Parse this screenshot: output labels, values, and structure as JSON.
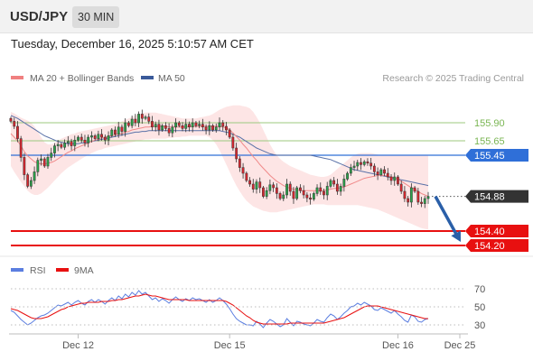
{
  "header": {
    "symbol": "USD/JPY",
    "timeframe": "30 MIN",
    "datetime": "Tuesday, December 16, 2025 5:10:57 AM CET"
  },
  "chart_data": [
    {
      "type": "candlestick",
      "legend": [
        {
          "label": "MA 20 + Bollinger Bands",
          "color": "#f08080"
        },
        {
          "label": "MA 50",
          "color": "#3a5a9a"
        }
      ],
      "credit": "Research © 2025 Trading Central",
      "x_ticks": [
        {
          "label": "Dec 12",
          "index": 20
        },
        {
          "label": "Dec 15",
          "index": 65
        },
        {
          "label": "Dec 16",
          "index": 115
        },
        {
          "label": "Dec 25",
          "index": 132
        }
      ],
      "ylim": [
        154.1,
        156.35
      ],
      "levels": [
        {
          "label": "155.90",
          "value": 155.9,
          "kind": "resistance",
          "color": "#9cc97e"
        },
        {
          "label": "155.65",
          "value": 155.65,
          "kind": "resistance",
          "color": "#9cc97e"
        },
        {
          "label": "155.45",
          "value": 155.45,
          "kind": "pivot",
          "color": "#2f6fd8"
        },
        {
          "label": "154.88",
          "value": 154.88,
          "kind": "last",
          "color": "#333333"
        },
        {
          "label": "154.40",
          "value": 154.4,
          "kind": "target",
          "color": "#e81010"
        },
        {
          "label": "154.20",
          "value": 154.2,
          "kind": "target",
          "color": "#e81010"
        }
      ],
      "projection": {
        "from": 154.88,
        "to": 154.25,
        "color": "#2a5fa8"
      },
      "close": [
        155.92,
        155.85,
        155.68,
        155.42,
        155.18,
        155.02,
        155.1,
        155.22,
        155.38,
        155.4,
        155.3,
        155.42,
        155.48,
        155.58,
        155.6,
        155.56,
        155.62,
        155.64,
        155.58,
        155.66,
        155.7,
        155.66,
        155.62,
        155.7,
        155.72,
        155.68,
        155.74,
        155.7,
        155.66,
        155.72,
        155.8,
        155.74,
        155.84,
        155.78,
        155.9,
        155.86,
        155.95,
        155.9,
        156.02,
        155.96,
        155.98,
        155.92,
        155.84,
        155.88,
        155.8,
        155.86,
        155.82,
        155.76,
        155.84,
        155.9,
        155.86,
        155.82,
        155.88,
        155.84,
        155.9,
        155.86,
        155.88,
        155.84,
        155.8,
        155.86,
        155.8,
        155.84,
        155.9,
        155.85,
        155.8,
        155.7,
        155.55,
        155.4,
        155.28,
        155.2,
        155.1,
        155.05,
        154.98,
        155.08,
        155.0,
        154.88,
        154.96,
        155.04,
        155.0,
        154.92,
        154.85,
        154.9,
        155.05,
        154.95,
        154.85,
        155.0,
        154.96,
        154.9,
        154.86,
        154.84,
        154.92,
        155.0,
        154.95,
        154.9,
        155.02,
        155.1,
        155.05,
        154.95,
        155.02,
        155.12,
        155.2,
        155.28,
        155.3,
        155.35,
        155.32,
        155.36,
        155.34,
        155.3,
        155.22,
        155.18,
        155.25,
        155.2,
        155.15,
        155.1,
        155.15,
        155.05,
        154.95,
        154.85,
        154.8,
        155.0,
        154.95,
        154.8,
        154.78,
        154.85,
        154.88
      ],
      "ma20": [
        155.75,
        155.7,
        155.65,
        155.58,
        155.5,
        155.44,
        155.4,
        155.36,
        155.34,
        155.33,
        155.33,
        155.34,
        155.35,
        155.37,
        155.4,
        155.43,
        155.46,
        155.49,
        155.51,
        155.54,
        155.56,
        155.58,
        155.6,
        155.62,
        155.64,
        155.66,
        155.67,
        155.69,
        155.7,
        155.71,
        155.72,
        155.73,
        155.74,
        155.75,
        155.77,
        155.78,
        155.8,
        155.81,
        155.82,
        155.83,
        155.84,
        155.84,
        155.85,
        155.85,
        155.85,
        155.85,
        155.85,
        155.84,
        155.84,
        155.84,
        155.84,
        155.84,
        155.84,
        155.85,
        155.85,
        155.85,
        155.85,
        155.85,
        155.85,
        155.85,
        155.85,
        155.85,
        155.85,
        155.84,
        155.83,
        155.8,
        155.76,
        155.71,
        155.66,
        155.6,
        155.55,
        155.49,
        155.43,
        155.38,
        155.32,
        155.27,
        155.22,
        155.17,
        155.13,
        155.09,
        155.06,
        155.03,
        155.01,
        154.99,
        154.98,
        154.97,
        154.96,
        154.96,
        154.96,
        154.96,
        154.96,
        154.96,
        154.96,
        154.96,
        154.97,
        154.98,
        154.99,
        154.99,
        155.0,
        155.01,
        155.03,
        155.05,
        155.07,
        155.09,
        155.11,
        155.13,
        155.14,
        155.15,
        155.16,
        155.17,
        155.17,
        155.17,
        155.16,
        155.15,
        155.14,
        155.12,
        155.09,
        155.06,
        155.03,
        155.0,
        154.98,
        154.95,
        154.92,
        154.9,
        154.88
      ],
      "bb_upper": [
        156.05,
        156.03,
        156.0,
        155.97,
        155.95,
        155.93,
        155.9,
        155.85,
        155.78,
        155.7,
        155.63,
        155.6,
        155.6,
        155.62,
        155.65,
        155.68,
        155.7,
        155.72,
        155.74,
        155.75,
        155.77,
        155.78,
        155.79,
        155.8,
        155.81,
        155.82,
        155.83,
        155.84,
        155.85,
        155.86,
        155.87,
        155.88,
        155.9,
        155.92,
        155.94,
        155.96,
        155.98,
        156.0,
        156.02,
        156.03,
        156.04,
        156.04,
        156.04,
        156.04,
        156.03,
        156.02,
        156.01,
        156.0,
        155.99,
        155.98,
        155.97,
        155.96,
        155.96,
        155.96,
        155.96,
        155.96,
        155.97,
        155.98,
        155.99,
        156.0,
        156.02,
        156.05,
        156.08,
        156.1,
        156.12,
        156.13,
        156.14,
        156.14,
        156.14,
        156.13,
        156.12,
        156.1,
        156.05,
        155.98,
        155.9,
        155.8,
        155.7,
        155.6,
        155.52,
        155.45,
        155.4,
        155.36,
        155.33,
        155.3,
        155.28,
        155.26,
        155.24,
        155.22,
        155.2,
        155.18,
        155.17,
        155.16,
        155.15,
        155.15,
        155.16,
        155.18,
        155.22,
        155.26,
        155.3,
        155.34,
        155.38,
        155.42,
        155.45,
        155.47,
        155.48,
        155.48,
        155.48,
        155.48,
        155.47,
        155.46,
        155.45,
        155.45,
        155.45,
        155.45,
        155.45,
        155.45,
        155.45,
        155.45,
        155.45,
        155.45,
        155.45,
        155.45,
        155.45,
        155.45,
        155.45
      ],
      "bb_lower": [
        155.3,
        155.22,
        155.15,
        155.08,
        155.02,
        154.96,
        154.92,
        154.9,
        154.9,
        154.92,
        154.96,
        155.0,
        155.05,
        155.1,
        155.15,
        155.2,
        155.24,
        155.28,
        155.31,
        155.34,
        155.37,
        155.4,
        155.43,
        155.45,
        155.48,
        155.5,
        155.52,
        155.53,
        155.55,
        155.56,
        155.57,
        155.58,
        155.59,
        155.6,
        155.61,
        155.62,
        155.63,
        155.64,
        155.65,
        155.66,
        155.67,
        155.67,
        155.68,
        155.68,
        155.68,
        155.68,
        155.68,
        155.69,
        155.69,
        155.7,
        155.7,
        155.71,
        155.71,
        155.72,
        155.72,
        155.72,
        155.72,
        155.72,
        155.72,
        155.7,
        155.66,
        155.6,
        155.52,
        155.42,
        155.32,
        155.22,
        155.12,
        155.03,
        154.95,
        154.88,
        154.82,
        154.78,
        154.74,
        154.72,
        154.7,
        154.68,
        154.67,
        154.66,
        154.66,
        154.66,
        154.67,
        154.68,
        154.69,
        154.7,
        154.71,
        154.72,
        154.73,
        154.74,
        154.75,
        154.76,
        154.77,
        154.77,
        154.77,
        154.77,
        154.76,
        154.76,
        154.76,
        154.76,
        154.76,
        154.76,
        154.76,
        154.76,
        154.76,
        154.76,
        154.75,
        154.74,
        154.73,
        154.72,
        154.71,
        154.7,
        154.68,
        154.66,
        154.64,
        154.62,
        154.6,
        154.58,
        154.56,
        154.54,
        154.52,
        154.5,
        154.48,
        154.46,
        154.44,
        154.43,
        154.42
      ],
      "ma50": [
        156.0,
        155.98,
        155.96,
        155.93,
        155.9,
        155.87,
        155.84,
        155.81,
        155.78,
        155.75,
        155.72,
        155.7,
        155.68,
        155.66,
        155.64,
        155.63,
        155.62,
        155.61,
        155.61,
        155.61,
        155.61,
        155.62,
        155.62,
        155.63,
        155.64,
        155.65,
        155.66,
        155.67,
        155.68,
        155.69,
        155.7,
        155.71,
        155.72,
        155.73,
        155.74,
        155.75,
        155.76,
        155.77,
        155.77,
        155.78,
        155.78,
        155.79,
        155.79,
        155.79,
        155.79,
        155.79,
        155.79,
        155.79,
        155.79,
        155.79,
        155.79,
        155.79,
        155.79,
        155.79,
        155.79,
        155.79,
        155.79,
        155.79,
        155.79,
        155.79,
        155.79,
        155.79,
        155.79,
        155.78,
        155.77,
        155.76,
        155.74,
        155.72,
        155.7,
        155.67,
        155.64,
        155.61,
        155.58,
        155.55,
        155.53,
        155.51,
        155.49,
        155.47,
        155.46,
        155.45,
        155.45,
        155.45,
        155.45,
        155.45,
        155.45,
        155.45,
        155.45,
        155.45,
        155.45,
        155.45,
        155.44,
        155.43,
        155.42,
        155.41,
        155.4,
        155.39,
        155.37,
        155.35,
        155.33,
        155.31,
        155.29,
        155.27,
        155.25,
        155.24,
        155.23,
        155.22,
        155.21,
        155.2,
        155.19,
        155.18,
        155.17,
        155.16,
        155.15,
        155.14,
        155.13,
        155.12,
        155.11,
        155.1,
        155.09,
        155.08,
        155.07,
        155.06,
        155.05,
        155.04,
        155.03
      ]
    },
    {
      "type": "line",
      "legend": [
        {
          "label": "RSI",
          "color": "#5b7ee0"
        },
        {
          "label": "9MA",
          "color": "#e81010"
        }
      ],
      "y_ticks": [
        "70",
        "50",
        "30"
      ],
      "ylim": [
        22,
        78
      ],
      "rsi": [
        46,
        44,
        40,
        36,
        33,
        30,
        32,
        35,
        38,
        40,
        41,
        43,
        46,
        49,
        52,
        51,
        53,
        55,
        52,
        55,
        57,
        54,
        52,
        56,
        58,
        55,
        58,
        56,
        53,
        57,
        60,
        57,
        62,
        59,
        64,
        61,
        66,
        63,
        68,
        64,
        66,
        62,
        58,
        60,
        56,
        59,
        57,
        54,
        58,
        61,
        58,
        56,
        59,
        57,
        60,
        58,
        59,
        57,
        55,
        58,
        55,
        57,
        60,
        57,
        53,
        48,
        42,
        37,
        34,
        32,
        30,
        30,
        29,
        34,
        31,
        27,
        32,
        36,
        34,
        31,
        28,
        30,
        37,
        33,
        29,
        34,
        33,
        31,
        30,
        29,
        32,
        36,
        34,
        33,
        38,
        42,
        40,
        36,
        39,
        43,
        46,
        50,
        51,
        54,
        52,
        55,
        53,
        51,
        47,
        46,
        49,
        47,
        45,
        43,
        46,
        42,
        39,
        35,
        33,
        41,
        39,
        34,
        33,
        36,
        37
      ],
      "ma9": [
        48,
        47,
        46,
        44,
        42,
        40,
        38,
        37,
        37,
        37,
        38,
        39,
        41,
        43,
        45,
        47,
        48,
        50,
        51,
        52,
        53,
        54,
        54,
        55,
        55,
        55,
        55,
        56,
        56,
        56,
        57,
        57,
        58,
        58,
        59,
        60,
        61,
        62,
        62,
        63,
        64,
        63,
        62,
        62,
        61,
        60,
        59,
        58,
        58,
        58,
        58,
        58,
        58,
        57,
        57,
        57,
        57,
        57,
        57,
        57,
        57,
        57,
        57,
        57,
        56,
        54,
        52,
        49,
        46,
        43,
        40,
        38,
        35,
        33,
        32,
        31,
        31,
        31,
        31,
        31,
        31,
        31,
        31,
        32,
        32,
        32,
        32,
        32,
        32,
        32,
        32,
        32,
        32,
        32,
        33,
        34,
        35,
        36,
        37,
        38,
        40,
        42,
        44,
        46,
        48,
        50,
        51,
        51,
        51,
        51,
        50,
        49,
        48,
        47,
        46,
        45,
        44,
        43,
        42,
        41,
        40,
        39,
        38,
        37,
        37
      ]
    }
  ]
}
